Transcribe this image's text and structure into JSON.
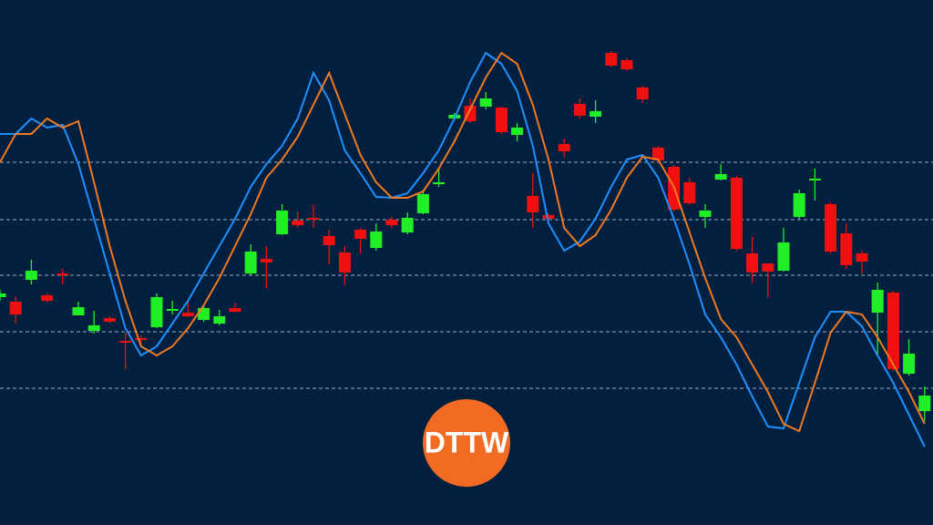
{
  "chart_data": {
    "type": "candlestick",
    "ylim": [
      0,
      576
    ],
    "ygrid": [
      398,
      335,
      274,
      212,
      150
    ],
    "grid_color": "#c8d0da",
    "background": "#011f3e",
    "up_color": "#1fef24",
    "down_color": "#f01010",
    "open": [
      250,
      245,
      269,
      252,
      276,
      230,
      213,
      227,
      202,
      205,
      217,
      235,
      233,
      225,
      221,
      238,
      276,
      292,
      319,
      334,
      337,
      317,
      299,
      324,
      304,
      335,
      321,
      342,
      374,
      446,
      460,
      459,
      458,
      428,
      361,
      340,
      418,
      462,
      448,
      518,
      510,
      480,
      414,
      393,
      376,
      338,
      379,
      381,
      298,
      287,
      279,
      338,
      378,
      352,
      320,
      298,
      233,
      255,
      166,
      125
    ],
    "high": [
      258,
      251,
      291,
      254,
      281,
      245,
      235,
      229,
      211,
      208,
      254,
      246,
      246,
      240,
      236,
      244,
      308,
      306,
      352,
      344,
      351,
      324,
      306,
      326,
      331,
      338,
      343,
      368,
      391,
      452,
      468,
      475,
      459,
      441,
      386,
      342,
      424,
      468,
      466,
      520,
      512,
      482,
      416,
      395,
      381,
      352,
      396,
      383,
      316,
      287,
      326,
      368,
      391,
      354,
      331,
      301,
      266,
      257,
      204,
      152
    ],
    "low": [
      246,
      221,
      264,
      244,
      264,
      230,
      210,
      222,
      171,
      198,
      216,
      231,
      228,
      223,
      219,
      233,
      274,
      260,
      318,
      326,
      326,
      286,
      263,
      298,
      301,
      326,
      319,
      341,
      371,
      444,
      441,
      456,
      429,
      421,
      326,
      334,
      403,
      446,
      441,
      502,
      498,
      463,
      398,
      344,
      351,
      326,
      378,
      301,
      266,
      250,
      278,
      336,
      356,
      298,
      281,
      276,
      186,
      169,
      164,
      114
    ],
    "close": [
      254,
      231,
      279,
      246,
      274,
      239,
      219,
      223,
      200,
      203,
      250,
      237,
      229,
      238,
      229,
      234,
      300,
      288,
      345,
      329,
      335,
      307,
      277,
      314,
      322,
      329,
      337,
      363,
      376,
      450,
      443,
      468,
      431,
      436,
      343,
      336,
      410,
      449,
      454,
      504,
      500,
      467,
      400,
      346,
      353,
      345,
      385,
      303,
      277,
      278,
      310,
      364,
      380,
      300,
      285,
      289,
      258,
      171,
      188,
      142
    ],
    "series": [
      {
        "color": "#1e90ff",
        "values": [
          429,
          429,
          446,
          436,
          439,
          396,
          336,
          276,
          216,
          186,
          196,
          221,
          246,
          276,
          306,
          336,
          371,
          396,
          416,
          446,
          496,
          466,
          411,
          386,
          360,
          359,
          364,
          386,
          411,
          446,
          486,
          518,
          506,
          476,
          416,
          331,
          301,
          311,
          336,
          371,
          401,
          406,
          381,
          336,
          286,
          231,
          206,
          176,
          141,
          108,
          106,
          156,
          206,
          234,
          234,
          218,
          186,
          156,
          121,
          86
        ]
      },
      {
        "color": "#f07a22",
        "values": [
          398,
          429,
          429,
          446,
          436,
          443,
          376,
          306,
          246,
          196,
          186,
          196,
          216,
          241,
          271,
          306,
          341,
          381,
          401,
          426,
          461,
          496,
          451,
          406,
          376,
          359,
          359,
          366,
          391,
          421,
          456,
          491,
          518,
          506,
          461,
          401,
          326,
          306,
          318,
          346,
          381,
          404,
          401,
          371,
          321,
          271,
          226,
          206,
          176,
          146,
          111,
          103,
          156,
          211,
          234,
          231,
          206,
          176,
          146,
          111
        ]
      }
    ]
  },
  "logo": {
    "text": "DTTW",
    "color": "#f26b22"
  }
}
